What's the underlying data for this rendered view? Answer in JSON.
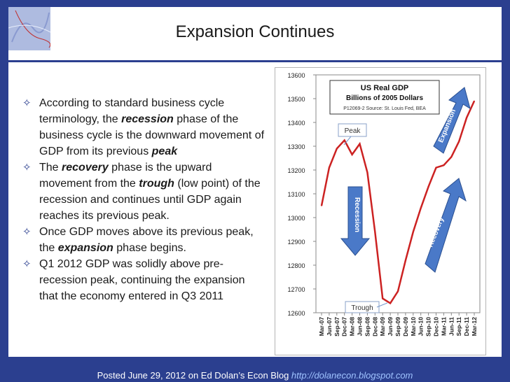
{
  "title": "Expansion Continues",
  "bullets": [
    {
      "parts": [
        {
          "t": "According to standard business cycle terminology, the ",
          "s": ""
        },
        {
          "t": "recession",
          "s": "b"
        },
        {
          "t": " phase of the business cycle is the downward movement of GDP from its previous ",
          "s": ""
        },
        {
          "t": "peak",
          "s": "b"
        }
      ]
    },
    {
      "parts": [
        {
          "t": "The ",
          "s": ""
        },
        {
          "t": "recovery",
          "s": "b"
        },
        {
          "t": " phase is the upward movement from the ",
          "s": ""
        },
        {
          "t": "trough",
          "s": "b"
        },
        {
          "t": " (low point) of the recession and continues until GDP again reaches its previous peak.",
          "s": ""
        }
      ]
    },
    {
      "parts": [
        {
          "t": "Once GDP moves above its previous peak, the ",
          "s": ""
        },
        {
          "t": "expansion",
          "s": "b"
        },
        {
          "t": " phase begins.",
          "s": ""
        }
      ]
    },
    {
      "parts": [
        {
          "t": "Q1 2012 GDP was solidly above pre-recession peak, continuing the expansion that the economy entered in Q3 2011",
          "s": ""
        }
      ]
    }
  ],
  "footer": {
    "text": "Posted June 29, 2012 on Ed Dolan’s Econ Blog ",
    "link": "http://dolanecon.blogspot.com"
  },
  "chart_data": {
    "type": "line",
    "title": "US Real GDP",
    "subtitle": "Billions of 2005 Dollars",
    "source": "P12069-2 Source: St. Louis Fed, BEA",
    "ylim": [
      12600,
      13600
    ],
    "yticks": [
      12600,
      12700,
      12800,
      12900,
      13000,
      13100,
      13200,
      13300,
      13400,
      13500,
      13600
    ],
    "x": [
      "Mar-07",
      "Jun-07",
      "Sep-07",
      "Dec-07",
      "Mar-08",
      "Jun-08",
      "Sep-08",
      "Dec-08",
      "Mar-09",
      "Jun-09",
      "Sep-09",
      "Dec-09",
      "Mar-10",
      "Jun-10",
      "Sep-10",
      "Dec-10",
      "Mar-11",
      "Jun-11",
      "Sep-11",
      "Dec-11",
      "Mar-12"
    ],
    "values": [
      13050,
      13210,
      13290,
      13325,
      13265,
      13310,
      13190,
      12940,
      12660,
      12640,
      12690,
      12820,
      12940,
      13040,
      13130,
      13210,
      13220,
      13255,
      13320,
      13420,
      13490
    ],
    "line_color": "#cc2222",
    "annotations": [
      {
        "label": "Peak"
      },
      {
        "label": "Trough"
      },
      {
        "label": "Recession"
      },
      {
        "label": "Recovery"
      },
      {
        "label": "Expansion"
      }
    ]
  }
}
